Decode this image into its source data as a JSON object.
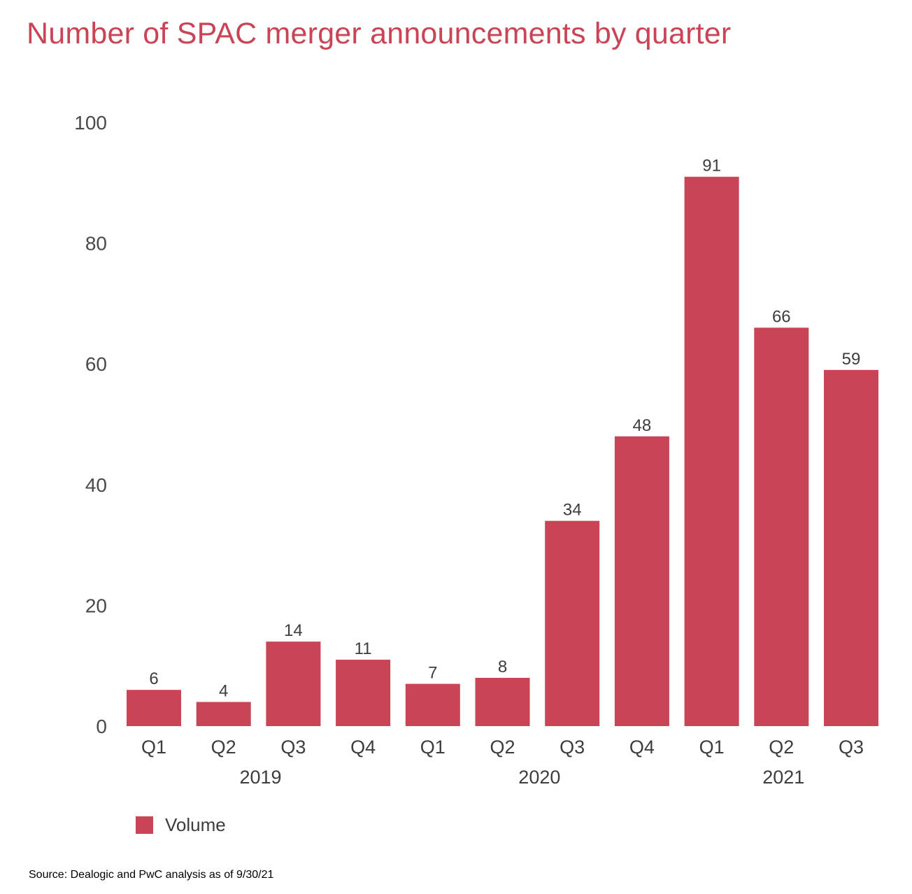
{
  "title": "Number of SPAC merger announcements by quarter",
  "source": "Source: Dealogic and PwC analysis as of 9/30/21",
  "colors": {
    "bar": "#c94556",
    "title": "#c94556",
    "axis_text": "#4a4a4a",
    "label_text": "#3d3d3d"
  },
  "chart_data": {
    "type": "bar",
    "title": "Number of SPAC merger announcements by quarter",
    "categories": [
      "Q1",
      "Q2",
      "Q3",
      "Q4",
      "Q1",
      "Q2",
      "Q3",
      "Q4",
      "Q1",
      "Q2",
      "Q3"
    ],
    "groups": [
      {
        "label": "2019",
        "quarters": 4
      },
      {
        "label": "2020",
        "quarters": 4
      },
      {
        "label": "2021",
        "quarters": 3
      }
    ],
    "series": [
      {
        "name": "Volume",
        "values": [
          6,
          4,
          14,
          11,
          7,
          8,
          34,
          48,
          91,
          66,
          59
        ]
      }
    ],
    "data_labels": [
      "6",
      "4",
      "14",
      "11",
      "7",
      "8",
      "34",
      "48",
      "91",
      "66",
      "59"
    ],
    "yticks": [
      0,
      20,
      40,
      60,
      80,
      100
    ],
    "ylim": [
      0,
      100
    ],
    "xlabel": "",
    "ylabel": "",
    "legend": {
      "position": "bottom-left",
      "entries": [
        "Volume"
      ]
    },
    "grid": false
  }
}
